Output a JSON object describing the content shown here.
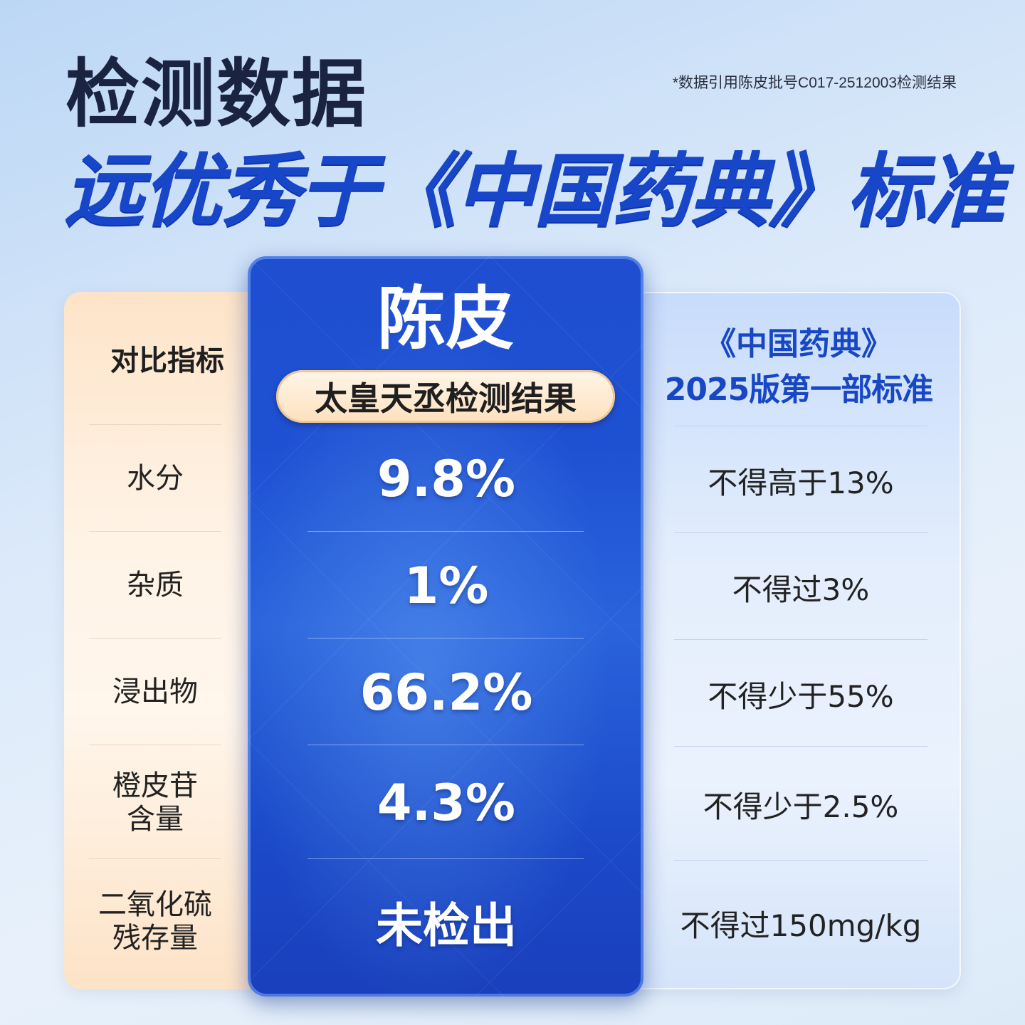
{
  "header": {
    "title_main": "检测数据",
    "title_sub": "远优秀于《中国药典》标准",
    "footnote": "*数据引用陈皮批号C017-2512003检测结果"
  },
  "left": {
    "heading": "对比指标",
    "rows": [
      "水分",
      "杂质",
      "浸出物",
      "橙皮苷\n含量",
      "二氧化硫\n残存量"
    ]
  },
  "center": {
    "title": "陈皮",
    "badge": "太皇天丞检测结果",
    "rows": [
      "9.8%",
      "1%",
      "66.2%",
      "4.3%",
      "未检出"
    ]
  },
  "right": {
    "heading_line1": "《中国药典》",
    "heading_line2": "2025版第一部标准",
    "rows": [
      "不得高于13%",
      "不得过3%",
      "不得少于55%",
      "不得少于2.5%",
      "不得过150mg/kg"
    ]
  },
  "colors": {
    "accent_blue": "#1846c8",
    "panel_center": "#1e50d2",
    "panel_left": "#fde4c8",
    "panel_right": "#e4eefc"
  }
}
